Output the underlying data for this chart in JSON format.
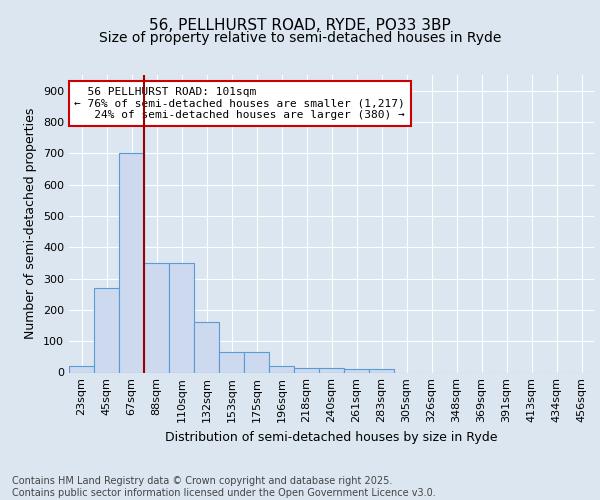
{
  "title1": "56, PELLHURST ROAD, RYDE, PO33 3BP",
  "title2": "Size of property relative to semi-detached houses in Ryde",
  "xlabel": "Distribution of semi-detached houses by size in Ryde",
  "ylabel": "Number of semi-detached properties",
  "property_size": 101,
  "property_label": "56 PELLHURST ROAD: 101sqm",
  "smaller_pct": 76,
  "smaller_count": 1217,
  "larger_pct": 24,
  "larger_count": 380,
  "bin_labels": [
    "23sqm",
    "45sqm",
    "67sqm",
    "88sqm",
    "110sqm",
    "132sqm",
    "153sqm",
    "175sqm",
    "196sqm",
    "218sqm",
    "240sqm",
    "261sqm",
    "283sqm",
    "305sqm",
    "326sqm",
    "348sqm",
    "369sqm",
    "391sqm",
    "413sqm",
    "434sqm",
    "456sqm"
  ],
  "bar_values": [
    20,
    270,
    700,
    350,
    350,
    160,
    65,
    65,
    20,
    13,
    13,
    10,
    10,
    0,
    0,
    0,
    0,
    0,
    0,
    0,
    0
  ],
  "bar_color": "#ccd9ee",
  "bar_edge_color": "#5b9bd5",
  "vline_x": 2.5,
  "vline_color": "#990000",
  "annotation_box_color": "#ffffff",
  "annotation_box_edge": "#cc0000",
  "background_color": "#dce6f1",
  "axes_bg_color": "#dce6f1",
  "ylim": [
    0,
    950
  ],
  "yticks": [
    0,
    100,
    200,
    300,
    400,
    500,
    600,
    700,
    800,
    900
  ],
  "footer_text": "Contains HM Land Registry data © Crown copyright and database right 2025.\nContains public sector information licensed under the Open Government Licence v3.0.",
  "title1_fontsize": 11,
  "title2_fontsize": 10,
  "xlabel_fontsize": 9,
  "ylabel_fontsize": 9,
  "tick_fontsize": 8,
  "annotation_fontsize": 8,
  "footer_fontsize": 7
}
